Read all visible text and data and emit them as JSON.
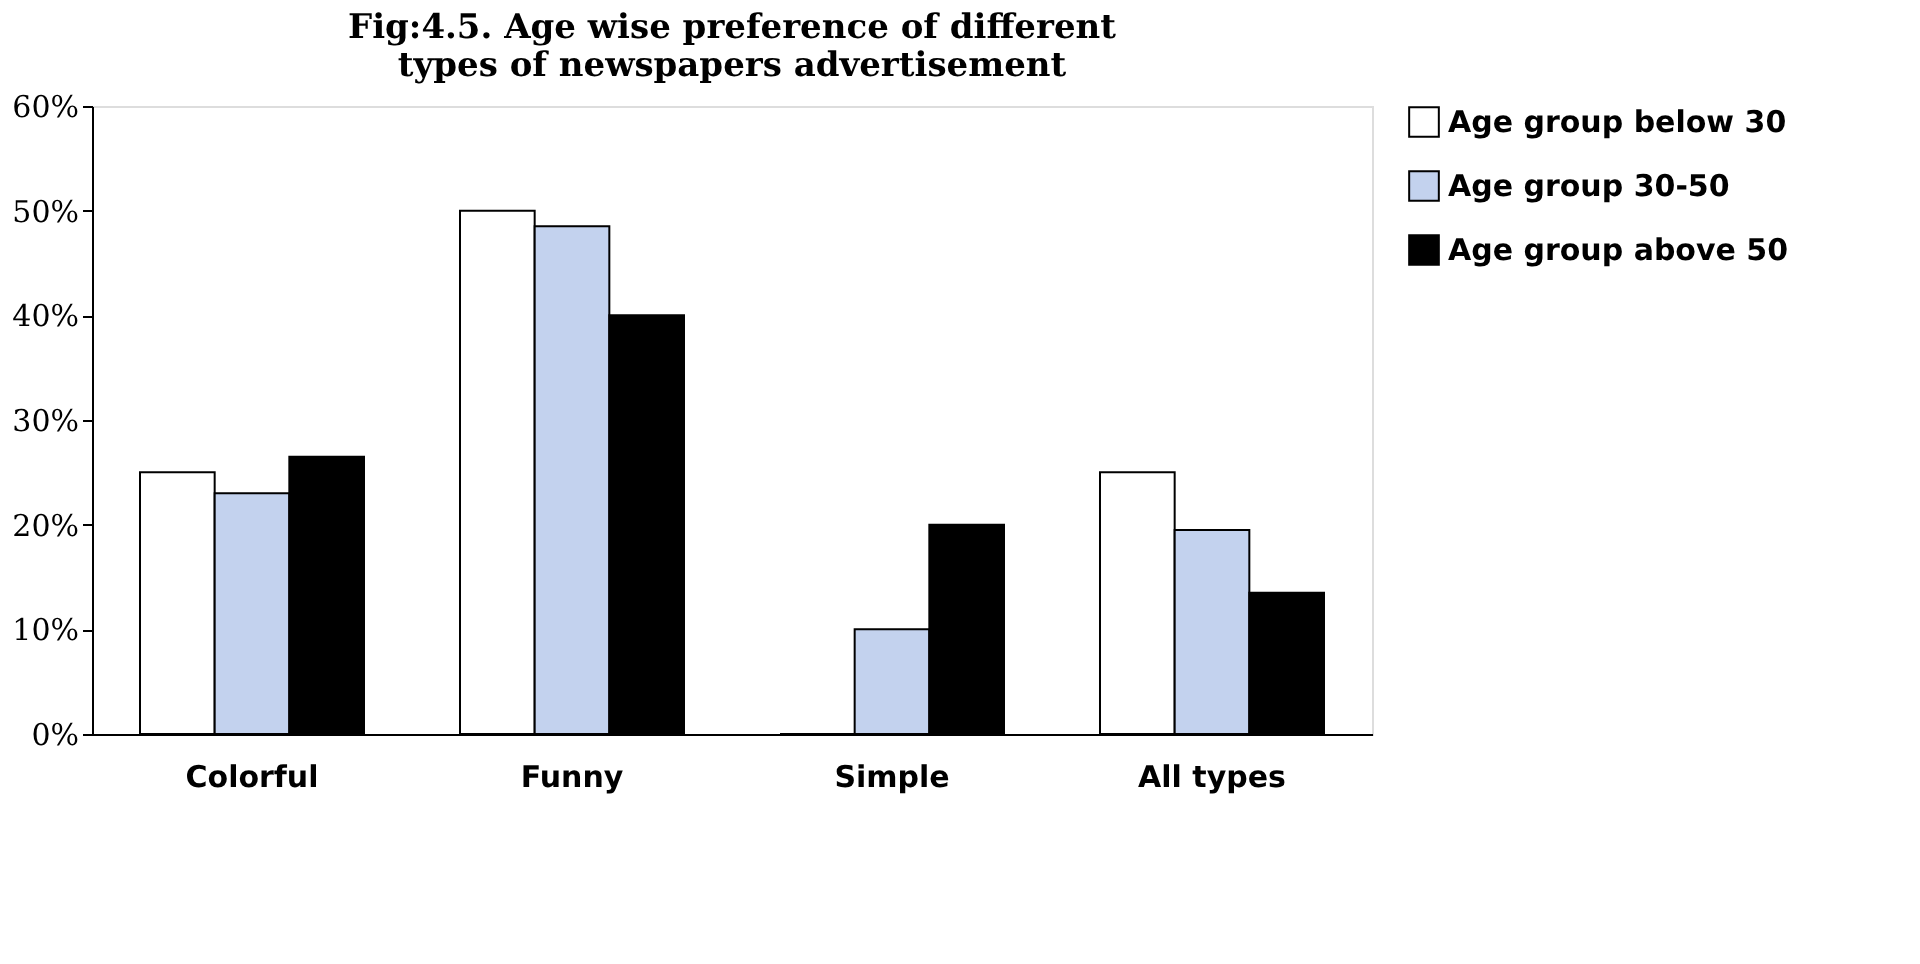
{
  "chart_data": {
    "type": "bar",
    "title": "Fig:4.5. Age wise preference of different types of newspapers advertisement",
    "categories": [
      "Colorful",
      "Funny",
      "Simple",
      "All types"
    ],
    "series": [
      {
        "name": "Age group below 30",
        "color": "#ffffff",
        "values": [
          25,
          50,
          0,
          25
        ]
      },
      {
        "name": "Age group 30-50",
        "color": "#c3d2ee",
        "values": [
          23,
          48.5,
          10,
          19.5
        ]
      },
      {
        "name": "Age group above 50",
        "color": "#000000",
        "values": [
          26.5,
          40,
          20,
          13.5
        ]
      }
    ],
    "ylim": [
      0,
      60
    ],
    "yticks": [
      {
        "value": 0,
        "label": "0%"
      },
      {
        "value": 10,
        "label": "10%"
      },
      {
        "value": 20,
        "label": "20%"
      },
      {
        "value": 30,
        "label": "30%"
      },
      {
        "value": 40,
        "label": "40%"
      },
      {
        "value": 50,
        "label": "50%"
      },
      {
        "value": 60,
        "label": "60%"
      }
    ],
    "grid": false,
    "legend": "right"
  }
}
